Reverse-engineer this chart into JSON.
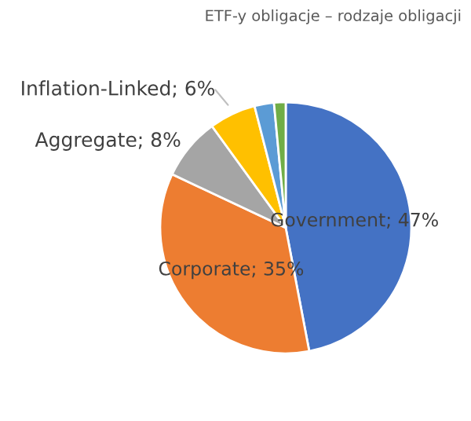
{
  "chart_data": {
    "type": "pie",
    "title": "ETF-y obligacje – rodzaje obligacji",
    "categories": [
      "Government",
      "Corporate",
      "Aggregate",
      "Inflation-Linked",
      null,
      null
    ],
    "values": [
      47,
      35,
      8,
      6,
      2.5,
      1.5
    ],
    "value_labels": [
      "47%",
      "35%",
      "8%",
      "6%",
      null,
      null
    ],
    "colors": [
      "#4472c4",
      "#ed7d31",
      "#a5a5a5",
      "#ffc000",
      "#5b9bd5",
      "#70ad47"
    ],
    "legend": false
  }
}
